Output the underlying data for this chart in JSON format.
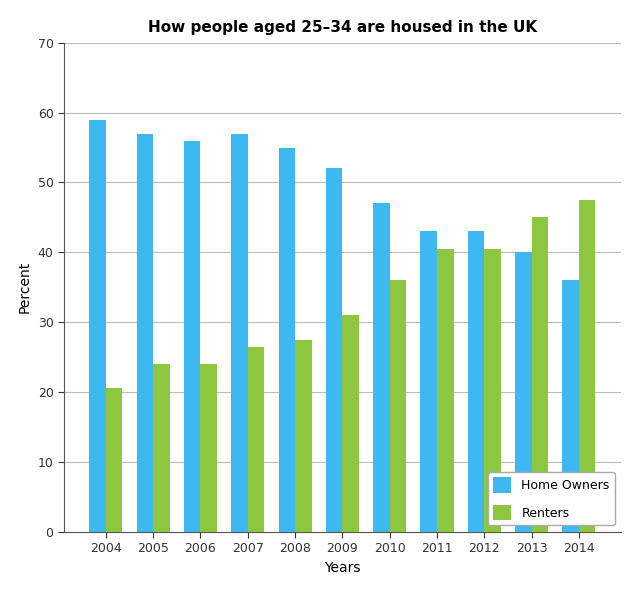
{
  "title": "How people aged 25–34 are housed in the UK",
  "years": [
    2004,
    2005,
    2006,
    2007,
    2008,
    2009,
    2010,
    2011,
    2012,
    2013,
    2014
  ],
  "home_owners": [
    59,
    57,
    56,
    57,
    55,
    52,
    47,
    43,
    43,
    40,
    36
  ],
  "renters": [
    20.5,
    24,
    24,
    26.5,
    27.5,
    31,
    36,
    40.5,
    40.5,
    45,
    47.5
  ],
  "home_owners_color": "#3eb8f0",
  "renters_color": "#8dc63f",
  "ylabel": "Percent",
  "xlabel": "Years",
  "ylim": [
    0,
    70
  ],
  "yticks": [
    0,
    10,
    20,
    30,
    40,
    50,
    60,
    70
  ],
  "legend_labels": [
    "Home Owners",
    "Renters"
  ],
  "bar_width": 0.35,
  "background_color": "#FFFFFF",
  "grid_color": "#BBBBBB",
  "title_fontsize": 11,
  "axis_label_fontsize": 10,
  "tick_fontsize": 9,
  "legend_fontsize": 9
}
